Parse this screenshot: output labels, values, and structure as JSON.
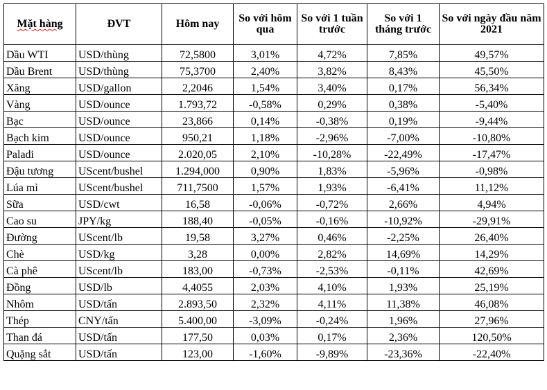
{
  "table": {
    "headers": [
      "Mặt hàng",
      "ĐVT",
      "Hôm nay",
      "So với hôm qua",
      "So với 1 tuần trước",
      "So với 1 tháng trước",
      "So với ngày đầu năm 2021"
    ],
    "rows": [
      [
        "Dầu WTI",
        "USD/thùng",
        "72,5800",
        "3,01%",
        "4,72%",
        "7,85%",
        "49,57%"
      ],
      [
        "Dầu Brent",
        "USD/thùng",
        "75,3700",
        "2,40%",
        "3,82%",
        "8,43%",
        "45,50%"
      ],
      [
        "Xăng",
        "USD/gallon",
        "2,2046",
        "1,54%",
        "3,40%",
        "0,17%",
        "56,34%"
      ],
      [
        "Vàng",
        "USD/ounce",
        "1.793,72",
        "-0,58%",
        "0,29%",
        "0,38%",
        "-5,40%"
      ],
      [
        "Bạc",
        "USD/ounce",
        "23,866",
        "0,14%",
        "-0,38%",
        "0,19%",
        "-9,44%"
      ],
      [
        "Bạch kim",
        "USD/ounce",
        "950,21",
        "1,18%",
        "-2,96%",
        "-7,00%",
        "-10,80%"
      ],
      [
        "Paladi",
        "USD/ounce",
        "2.020,05",
        "2,10%",
        "-10,28%",
        "-22,49%",
        "-17,47%"
      ],
      [
        "Đậu tương",
        "UScent/bushel",
        "1.294,000",
        "0,90%",
        "1,83%",
        "-5,96%",
        "-0,98%"
      ],
      [
        "Lúa mì",
        "UScent/bushel",
        "711,7500",
        "1,57%",
        "1,93%",
        "-6,41%",
        "11,12%"
      ],
      [
        "Sữa",
        "USD/cwt",
        "16,58",
        "-0,06%",
        "-0,72%",
        "2,66%",
        "4,94%"
      ],
      [
        "Cao su",
        "JPY/kg",
        "188,40",
        "-0,05%",
        "-0,16%",
        "-10,92%",
        "-29,91%"
      ],
      [
        "Đường",
        "UScent/lb",
        "19,58",
        "3,27%",
        "0,46%",
        "-2,25%",
        "26,40%"
      ],
      [
        "Chè",
        "USD/kg",
        "3,28",
        "0,00%",
        "2,82%",
        "14,69%",
        "14,29%"
      ],
      [
        "Cà phê",
        "UScent/lb",
        "183,00",
        "-0,73%",
        "-2,53%",
        "-0,11%",
        "42,69%"
      ],
      [
        "Đồng",
        "USD/lb",
        "4,4055",
        "2,03%",
        "4,10%",
        "1,93%",
        "25,19%"
      ],
      [
        "Nhôm",
        "USD/tấn",
        "2.893,50",
        "2,32%",
        "4,11%",
        "11,38%",
        "46,08%"
      ],
      [
        "Thép",
        "CNY/tấn",
        "5.400,00",
        "-3,09%",
        "-0,24%",
        "1,96%",
        "27,96%"
      ],
      [
        "Than đá",
        "USD/tấn",
        "177,50",
        "0,03%",
        "0,17%",
        "2,36%",
        "120,50%"
      ],
      [
        "Quặng sắt",
        "USD/tấn",
        "123,00",
        "-1,60%",
        "-9,89%",
        "-23,36%",
        "-22,40%"
      ]
    ]
  }
}
